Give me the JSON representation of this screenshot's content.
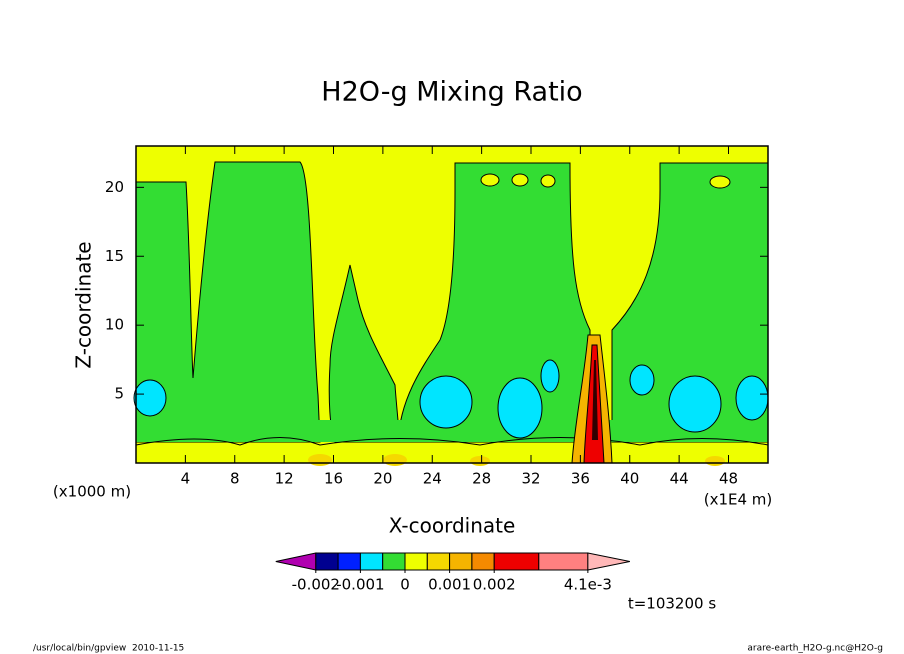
{
  "chart_data": {
    "type": "contour",
    "title": "H2O-g Mixing Ratio",
    "x_label": "X-coordinate",
    "y_label": "Z-coordinate",
    "x_unit_label": "(x1E4 m)",
    "y_unit_label": "(x1000 m)",
    "xlim": [
      0,
      51.2
    ],
    "xticks": [
      4,
      8,
      12,
      16,
      20,
      24,
      28,
      32,
      36,
      40,
      44,
      48
    ],
    "ylim": [
      0,
      23
    ],
    "yticks": [
      5,
      10,
      15,
      20
    ],
    "colorbar": {
      "levels": [
        -0.002,
        -0.0015,
        -0.001,
        -0.0005,
        0,
        0.0005,
        0.001,
        0.0015,
        0.002,
        0.003,
        0.0041
      ],
      "colors": [
        "#b000b0",
        "#000090",
        "#0020ff",
        "#00e5ff",
        "#33dd33",
        "#eeff00",
        "#f5d800",
        "#f5b400",
        "#f58a00",
        "#ee0000",
        "#ff8080",
        "#ffb8b8"
      ],
      "ticks": [
        -0.002,
        -0.001,
        0,
        0.001,
        0.002,
        {
          "value": 0.0041,
          "label": "4.1e-3"
        }
      ]
    },
    "time_label": "t=103200 s",
    "footer_left": "/usr/local/bin/gpview  2010-11-15",
    "footer_right": "arare-earth_H2O-g.nc@H2O-g"
  }
}
